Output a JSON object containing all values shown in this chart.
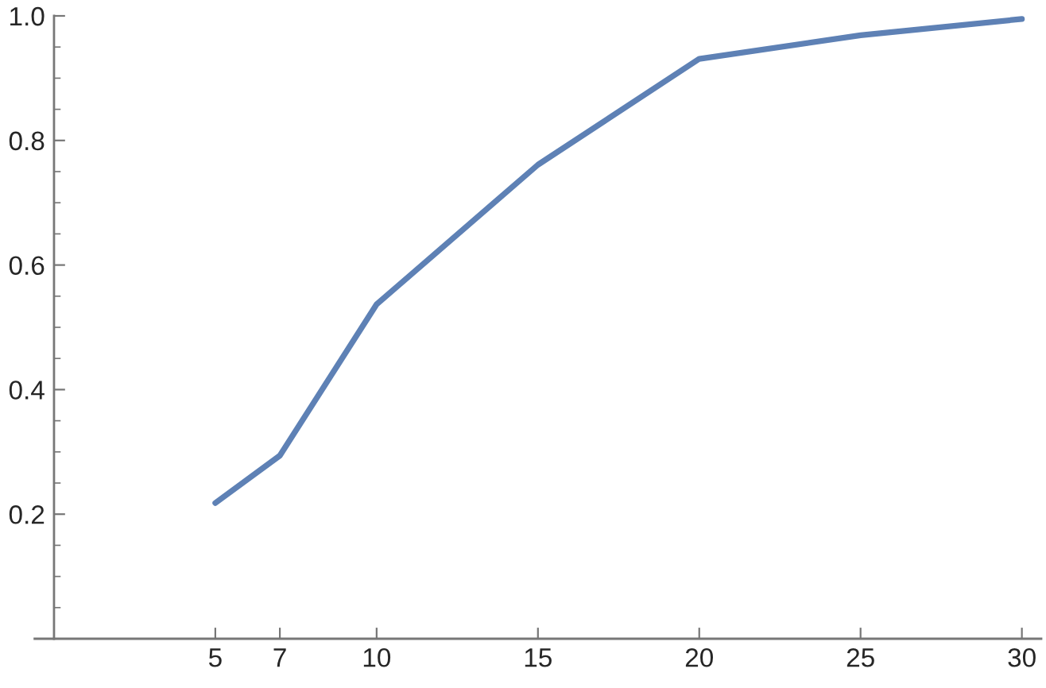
{
  "chart_data": {
    "type": "line",
    "x": [
      5,
      7,
      10,
      15,
      20,
      25,
      30
    ],
    "series": [
      {
        "color": "#5e81b5",
        "values": [
          0.218,
          0.294,
          0.537,
          0.761,
          0.931,
          0.969,
          0.995
        ]
      }
    ],
    "xlim": [
      -0.6,
      30.6
    ],
    "ylim": [
      0,
      1.0
    ],
    "xticks": [
      5,
      7,
      10,
      15,
      20,
      25,
      30
    ],
    "yticks": [
      0.2,
      0.4,
      0.6,
      0.8,
      {
        "value": 1.0,
        "label": "1.0"
      }
    ],
    "grid": false,
    "legend": false,
    "marker": "none",
    "line_style": "solid"
  }
}
